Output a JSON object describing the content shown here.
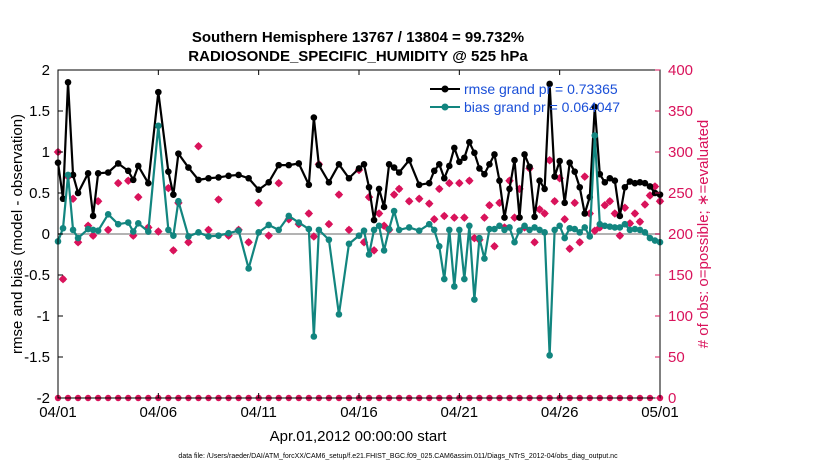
{
  "chart_data": {
    "type": "line",
    "title": "Southern Hemisphere 13767 / 13804 = 99.732%",
    "subtitle": "RADIOSONDE_SPECIFIC_HUMIDITY @ 525 hPa",
    "xlabel": "Apr.01,2012 00:00:00 start",
    "ylabel_left": "rmse and bias (model - observation)",
    "ylabel_right": "# of obs: o=possible; ∗=evaluated",
    "footnote": "data file: /Users/raeder/DAI/ATM_forcXX/CAM6_setup/f.e21.FHIST_BGC.f09_025.CAM6assim.011/Diags_NTrS_2012-04/obs_diag_output.nc",
    "xlim": [
      0,
      30
    ],
    "ylim_left": [
      -2,
      2
    ],
    "ylim_right": [
      0,
      400
    ],
    "x_ticks": [
      0,
      5,
      10,
      15,
      20,
      25,
      30
    ],
    "x_tick_labels": [
      "04/01",
      "04/06",
      "04/11",
      "04/16",
      "04/21",
      "04/26",
      "05/01"
    ],
    "y_left_ticks": [
      -2,
      -1.5,
      -1,
      -0.5,
      0,
      0.5,
      1,
      1.5,
      2
    ],
    "y_left_tick_labels": [
      "-2",
      "-1.5",
      "-1",
      "-0.5",
      "0",
      "0.5",
      "1",
      "1.5",
      "2"
    ],
    "y_right_ticks": [
      0,
      50,
      100,
      150,
      200,
      250,
      300,
      350,
      400
    ],
    "y_right_tick_labels": [
      "0",
      "50",
      "100",
      "150",
      "200",
      "250",
      "300",
      "350",
      "400"
    ],
    "legend_position": "top-right",
    "colors": {
      "rmse": "#000000",
      "bias": "#12857f",
      "obs": "#d9135b",
      "zero_line": "#b3b3b3",
      "legend_text": "#1a4fd8"
    },
    "series": [
      {
        "name": "rmse grand pr = 0.73365",
        "axis": "left",
        "x": [
          0,
          0.25,
          0.5,
          0.75,
          1,
          1.5,
          1.75,
          2,
          2.5,
          3,
          3.5,
          3.75,
          4,
          4.5,
          5,
          5.5,
          5.75,
          6,
          6.5,
          7,
          7.5,
          8,
          8.5,
          9,
          9.5,
          10,
          10.5,
          11,
          11.5,
          12,
          12.5,
          12.75,
          13,
          13.5,
          14,
          14.5,
          15,
          15.25,
          15.5,
          15.75,
          16,
          16.25,
          16.5,
          16.75,
          17,
          17.5,
          18,
          18.5,
          18.75,
          19,
          19.25,
          19.5,
          19.75,
          20,
          20.25,
          20.5,
          20.75,
          21,
          21.25,
          21.5,
          21.75,
          22,
          22.25,
          22.5,
          22.75,
          23,
          23.25,
          23.5,
          23.75,
          24,
          24.25,
          24.5,
          24.75,
          25,
          25.25,
          25.5,
          25.75,
          26,
          26.25,
          26.5,
          26.75,
          27,
          27.25,
          27.5,
          27.75,
          28,
          28.25,
          28.5,
          28.75,
          29,
          29.25,
          29.5,
          29.75,
          30
        ],
        "values": [
          0.87,
          0.43,
          1.85,
          0.72,
          0.5,
          0.74,
          0.22,
          0.74,
          0.75,
          0.86,
          0.77,
          0.66,
          0.83,
          0.62,
          1.73,
          0.76,
          0.48,
          0.98,
          0.81,
          0.66,
          0.68,
          0.69,
          0.71,
          0.72,
          0.68,
          0.54,
          0.63,
          0.84,
          0.84,
          0.86,
          0.6,
          1.42,
          0.84,
          0.63,
          0.85,
          0.68,
          0.8,
          0.85,
          0.57,
          0.17,
          0.55,
          0.33,
          0.85,
          0.81,
          0.75,
          0.9,
          0.6,
          0.62,
          0.77,
          0.85,
          0.68,
          0.83,
          1.05,
          0.88,
          0.93,
          1.12,
          0.99,
          0.8,
          0.73,
          0.85,
          0.97,
          0.65,
          0.2,
          0.55,
          0.9,
          0.2,
          0.97,
          0.82,
          0.21,
          0.65,
          0.55,
          1.83,
          0.7,
          0.89,
          0.38,
          0.87,
          0.76,
          0.57,
          0.25,
          0.45,
          1.55,
          0.73,
          0.63,
          0.68,
          0.65,
          0.22,
          0.57,
          0.64,
          0.62,
          0.63,
          0.62,
          0.58,
          0.5,
          0.48
        ]
      },
      {
        "name": "bias grand pr = 0.064047",
        "axis": "left",
        "x": [
          0,
          0.25,
          0.5,
          0.75,
          1,
          1.5,
          1.75,
          2,
          2.5,
          3,
          3.5,
          3.75,
          4,
          4.5,
          5,
          5.5,
          5.75,
          6,
          6.5,
          7,
          7.5,
          8,
          8.5,
          9,
          9.5,
          10,
          10.5,
          11,
          11.5,
          12,
          12.5,
          12.75,
          13,
          13.5,
          14,
          14.5,
          15,
          15.25,
          15.5,
          15.75,
          16,
          16.25,
          16.5,
          16.75,
          17,
          17.5,
          18,
          18.5,
          18.75,
          19,
          19.25,
          19.5,
          19.75,
          20,
          20.25,
          20.5,
          20.75,
          21,
          21.25,
          21.5,
          21.75,
          22,
          22.25,
          22.5,
          22.75,
          23,
          23.25,
          23.5,
          23.75,
          24,
          24.25,
          24.5,
          24.75,
          25,
          25.25,
          25.5,
          25.75,
          26,
          26.25,
          26.5,
          26.75,
          27,
          27.25,
          27.5,
          27.75,
          28,
          28.25,
          28.5,
          28.75,
          29,
          29.25,
          29.5,
          29.75,
          30
        ],
        "values": [
          -0.09,
          0.07,
          0.72,
          0.05,
          -0.05,
          0.06,
          0.05,
          0.04,
          0.24,
          0.12,
          0.14,
          0.03,
          0.13,
          0.03,
          1.32,
          0.05,
          -0.02,
          0.4,
          -0.03,
          0.02,
          -0.03,
          -0.02,
          0.01,
          0.04,
          -0.42,
          0.02,
          0.11,
          0.05,
          0.22,
          0.14,
          0.06,
          -1.25,
          0.05,
          -0.07,
          -0.98,
          -0.12,
          -0.02,
          0.04,
          -0.25,
          0.05,
          0.1,
          -0.2,
          0.06,
          0.28,
          0.05,
          0.08,
          0.04,
          0.12,
          0.05,
          -0.15,
          -0.55,
          0.05,
          -0.64,
          0.05,
          -0.55,
          0.1,
          -0.8,
          -0.05,
          -0.3,
          0.06,
          0.06,
          0.1,
          0.05,
          0.08,
          -0.1,
          0.04,
          0.1,
          0.05,
          0.08,
          0.05,
          0.02,
          -1.48,
          0.05,
          0.1,
          -0.05,
          0.07,
          0.06,
          0.02,
          0.08,
          -0.03,
          1.2,
          0.12,
          0.1,
          0.09,
          0.08,
          0.08,
          0.12,
          0.05,
          0.06,
          0.05,
          0.02,
          -0.05,
          -0.08,
          -0.1
        ]
      },
      {
        "name": "# of obs possible (o) and evaluated (*)",
        "axis": "right",
        "x": [
          0,
          0.25,
          0.5,
          0.75,
          1,
          1.5,
          1.75,
          2,
          2.5,
          3,
          3.5,
          3.75,
          4,
          4.5,
          5,
          5.5,
          5.75,
          6,
          6.5,
          7,
          7.5,
          8,
          8.5,
          9,
          9.5,
          10,
          10.5,
          11,
          11.5,
          12,
          12.5,
          12.75,
          13,
          13.5,
          14,
          14.5,
          15,
          15.25,
          15.5,
          15.75,
          16,
          16.25,
          16.5,
          16.75,
          17,
          17.5,
          18,
          18.5,
          18.75,
          19,
          19.25,
          19.5,
          19.75,
          20,
          20.25,
          20.5,
          20.75,
          21,
          21.25,
          21.5,
          21.75,
          22,
          22.25,
          22.5,
          22.75,
          23,
          23.25,
          23.5,
          23.75,
          24,
          24.25,
          24.5,
          24.75,
          25,
          25.25,
          25.5,
          25.75,
          26,
          26.25,
          26.5,
          26.75,
          27,
          27.25,
          27.5,
          27.75,
          28,
          28.25,
          28.5,
          28.75,
          29,
          29.25,
          29.5,
          29.75,
          30
        ],
        "values": [
          300,
          145,
          270,
          243,
          190,
          210,
          198,
          240,
          205,
          262,
          265,
          198,
          245,
          208,
          203,
          256,
          180,
          238,
          190,
          307,
          205,
          242,
          198,
          205,
          190,
          238,
          198,
          262,
          218,
          212,
          225,
          197,
          285,
          212,
          248,
          205,
          278,
          190,
          245,
          180,
          225,
          210,
          205,
          248,
          255,
          240,
          243,
          237,
          218,
          255,
          222,
          262,
          220,
          262,
          220,
          265,
          195,
          193,
          220,
          235,
          185,
          238,
          208,
          265,
          220,
          255,
          208,
          280,
          190,
          230,
          225,
          290,
          240,
          268,
          218,
          182,
          238,
          190,
          270,
          225,
          204,
          208,
          235,
          240,
          225,
          198,
          232,
          213,
          225,
          215,
          236,
          247,
          258,
          240
        ]
      }
    ]
  }
}
